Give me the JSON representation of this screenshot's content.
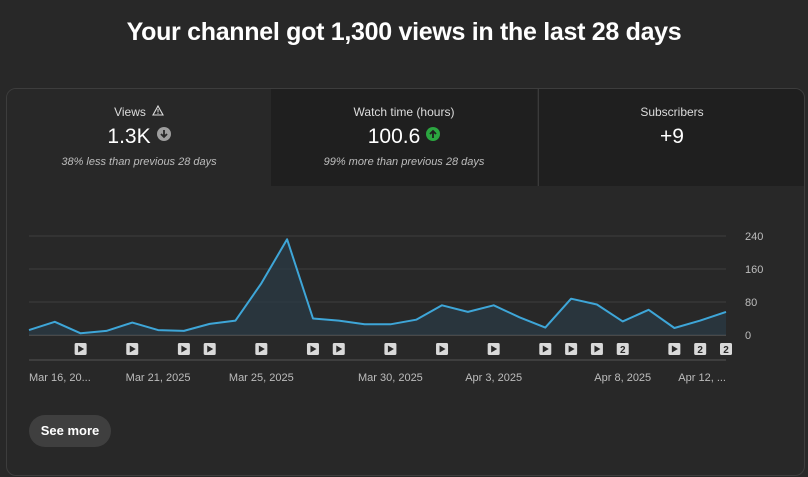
{
  "headline": "Your channel got 1,300 views in the last 28 days",
  "tabs": [
    {
      "label": "Views",
      "icon": "warning-icon",
      "value": "1.3K",
      "trend": "down",
      "trend_color": "#9e9e9e",
      "note": "38% less than previous 28 days"
    },
    {
      "label": "Watch time (hours)",
      "value": "100.6",
      "trend": "up",
      "trend_color": "#2ba640",
      "note": "99% more than previous 28 days"
    },
    {
      "label": "Subscribers",
      "value": "+9"
    }
  ],
  "see_more_label": "See more",
  "colors": {
    "line": "#3ea6d8",
    "area": "#2a3a44",
    "grid": "#3e3e3e",
    "text": "#bdbdbd"
  },
  "chart_data": {
    "type": "area",
    "x": [
      "Mar 16",
      "Mar 17",
      "Mar 18",
      "Mar 19",
      "Mar 20",
      "Mar 21",
      "Mar 22",
      "Mar 23",
      "Mar 24",
      "Mar 25",
      "Mar 26",
      "Mar 27",
      "Mar 28",
      "Mar 29",
      "Mar 30",
      "Mar 31",
      "Apr 1",
      "Apr 2",
      "Apr 3",
      "Apr 4",
      "Apr 5",
      "Apr 6",
      "Apr 7",
      "Apr 8",
      "Apr 9",
      "Apr 10",
      "Apr 11",
      "Apr 12"
    ],
    "values": [
      12,
      32,
      4,
      10,
      30,
      12,
      10,
      27,
      35,
      125,
      232,
      40,
      35,
      26,
      26,
      37,
      72,
      56,
      72,
      43,
      18,
      88,
      74,
      33,
      61,
      17,
      35,
      56
    ],
    "ylim": [
      0,
      240
    ],
    "yticks": [
      0,
      80,
      160,
      240
    ],
    "xtick_labels": [
      {
        "x": "Mar 16",
        "label": "Mar 16, 20..."
      },
      {
        "x": "Mar 21",
        "label": "Mar 21, 2025"
      },
      {
        "x": "Mar 25",
        "label": "Mar 25, 2025"
      },
      {
        "x": "Mar 30",
        "label": "Mar 30, 2025"
      },
      {
        "x": "Apr 3",
        "label": "Apr 3, 2025"
      },
      {
        "x": "Apr 8",
        "label": "Apr 8, 2025"
      },
      {
        "x": "Apr 12",
        "label": "Apr 12, ..."
      }
    ],
    "video_markers": [
      {
        "x": "Mar 18",
        "count": 1
      },
      {
        "x": "Mar 20",
        "count": 1
      },
      {
        "x": "Mar 22",
        "count": 1
      },
      {
        "x": "Mar 23",
        "count": 1
      },
      {
        "x": "Mar 25",
        "count": 1
      },
      {
        "x": "Mar 27",
        "count": 1
      },
      {
        "x": "Mar 28",
        "count": 1
      },
      {
        "x": "Mar 30",
        "count": 1
      },
      {
        "x": "Apr 1",
        "count": 1
      },
      {
        "x": "Apr 3",
        "count": 1
      },
      {
        "x": "Apr 5",
        "count": 1
      },
      {
        "x": "Apr 6",
        "count": 1
      },
      {
        "x": "Apr 7",
        "count": 1
      },
      {
        "x": "Apr 8",
        "count": 2
      },
      {
        "x": "Apr 10",
        "count": 1
      },
      {
        "x": "Apr 11",
        "count": 2
      },
      {
        "x": "Apr 12",
        "count": 2
      }
    ],
    "grid": true
  }
}
